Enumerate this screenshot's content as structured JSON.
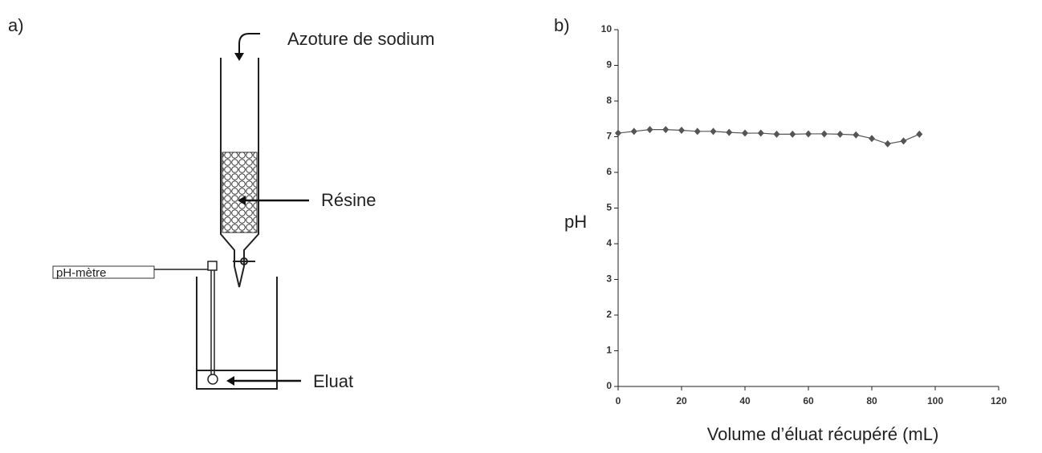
{
  "panels": {
    "a": "a)",
    "b": "b)"
  },
  "diagram": {
    "reagent": "Azoture de sodium",
    "resin": "Résine",
    "meter": "pH-mètre",
    "eluate": "Eluat"
  },
  "chart_data": {
    "type": "line",
    "x_label": "Volume d’éluat récupéré (mL)",
    "y_label": "pH",
    "x": [
      0,
      5,
      10,
      15,
      20,
      25,
      30,
      35,
      40,
      45,
      50,
      55,
      60,
      65,
      70,
      75,
      80,
      85,
      90,
      95
    ],
    "series": [
      {
        "color": "#555555",
        "values": [
          7.1,
          7.15,
          7.2,
          7.2,
          7.18,
          7.15,
          7.15,
          7.12,
          7.1,
          7.1,
          7.07,
          7.07,
          7.08,
          7.08,
          7.07,
          7.05,
          6.95,
          6.8,
          6.88,
          7.07
        ]
      }
    ],
    "xlim": [
      0,
      120
    ],
    "xticks": [
      0,
      20,
      40,
      60,
      80,
      100,
      120
    ],
    "ylim": [
      0,
      10
    ],
    "yticks": [
      0,
      1,
      2,
      3,
      4,
      5,
      6,
      7,
      8,
      9,
      10
    ]
  }
}
